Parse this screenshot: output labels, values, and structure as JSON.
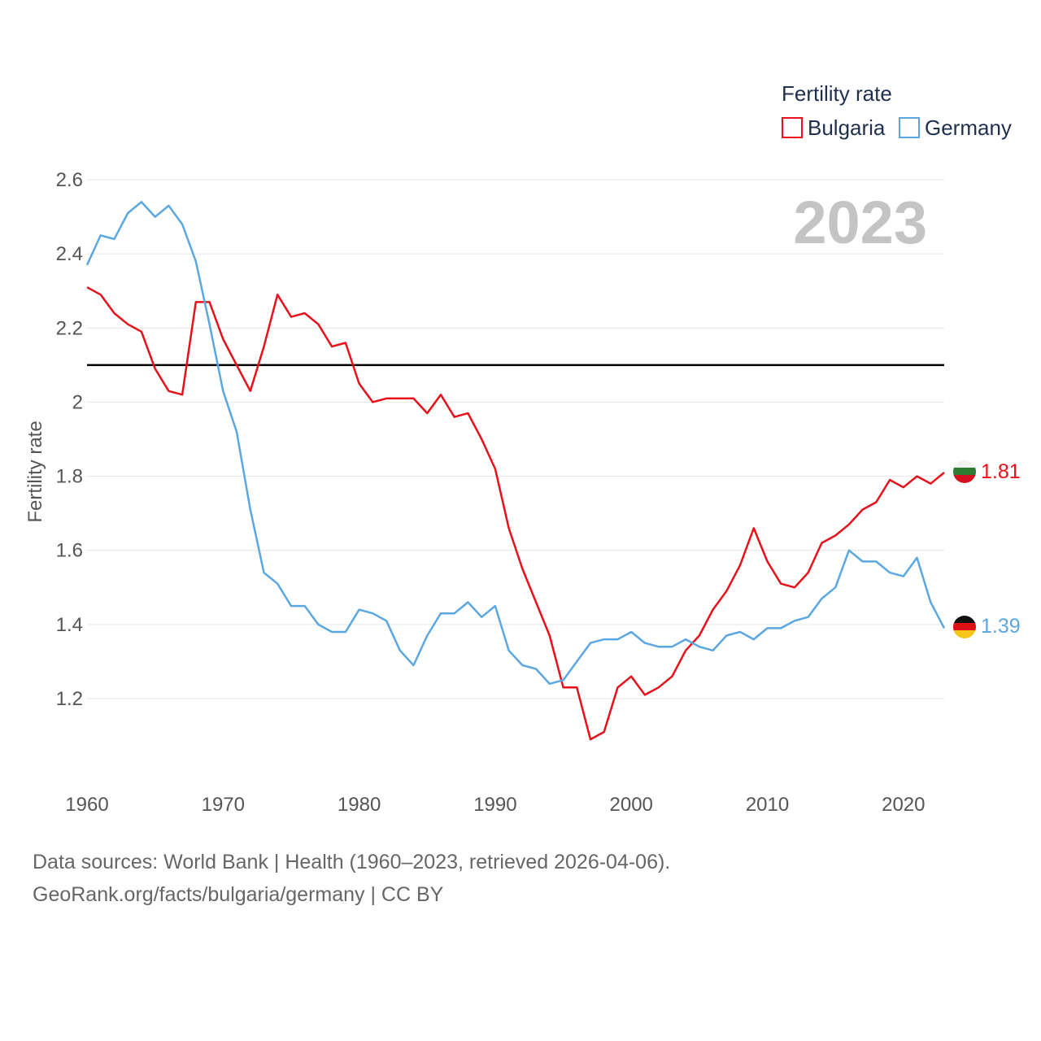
{
  "chart_data": {
    "type": "line",
    "title": "",
    "year_stamp": "2023",
    "xlabel": "",
    "ylabel": "Fertility rate",
    "xlim": [
      1960,
      2023
    ],
    "ylim": [
      1.02,
      2.62
    ],
    "x_ticks": [
      1960,
      1970,
      1980,
      1990,
      2000,
      2010,
      2020
    ],
    "y_ticks": [
      1.2,
      1.4,
      1.6,
      1.8,
      2.0,
      2.2,
      2.4,
      2.6
    ],
    "y_tick_labels": [
      "1.2",
      "1.4",
      "1.6",
      "1.8",
      "2",
      "2.2",
      "2.4",
      "2.6"
    ],
    "grid": true,
    "reference_line": {
      "value": 2.1,
      "color": "#000000"
    },
    "legend": {
      "title": "Fertility rate",
      "position": "top-right"
    },
    "x": [
      1960,
      1961,
      1962,
      1963,
      1964,
      1965,
      1966,
      1967,
      1968,
      1969,
      1970,
      1971,
      1972,
      1973,
      1974,
      1975,
      1976,
      1977,
      1978,
      1979,
      1980,
      1981,
      1982,
      1983,
      1984,
      1985,
      1986,
      1987,
      1988,
      1989,
      1990,
      1991,
      1992,
      1993,
      1994,
      1995,
      1996,
      1997,
      1998,
      1999,
      2000,
      2001,
      2002,
      2003,
      2004,
      2005,
      2006,
      2007,
      2008,
      2009,
      2010,
      2011,
      2012,
      2013,
      2014,
      2015,
      2016,
      2017,
      2018,
      2019,
      2020,
      2021,
      2022,
      2023
    ],
    "series": [
      {
        "name": "Bulgaria",
        "color": "#e8101a",
        "end_label": "1.81",
        "flag": "bulgaria-flag-icon",
        "values": [
          2.31,
          2.29,
          2.24,
          2.21,
          2.19,
          2.09,
          2.03,
          2.02,
          2.27,
          2.27,
          2.17,
          2.1,
          2.03,
          2.15,
          2.29,
          2.23,
          2.24,
          2.21,
          2.15,
          2.16,
          2.05,
          2.0,
          2.01,
          2.01,
          2.01,
          1.97,
          2.02,
          1.96,
          1.97,
          1.9,
          1.82,
          1.66,
          1.55,
          1.46,
          1.37,
          1.23,
          1.23,
          1.09,
          1.11,
          1.23,
          1.26,
          1.21,
          1.23,
          1.26,
          1.33,
          1.37,
          1.44,
          1.49,
          1.56,
          1.66,
          1.57,
          1.51,
          1.5,
          1.54,
          1.62,
          1.64,
          1.67,
          1.71,
          1.73,
          1.79,
          1.77,
          1.8,
          1.78,
          1.81
        ]
      },
      {
        "name": "Germany",
        "color": "#5ba7e1",
        "end_label": "1.39",
        "flag": "germany-flag-icon",
        "values": [
          2.37,
          2.45,
          2.44,
          2.51,
          2.54,
          2.5,
          2.53,
          2.48,
          2.38,
          2.21,
          2.03,
          1.92,
          1.71,
          1.54,
          1.51,
          1.45,
          1.45,
          1.4,
          1.38,
          1.38,
          1.44,
          1.43,
          1.41,
          1.33,
          1.29,
          1.37,
          1.43,
          1.43,
          1.46,
          1.42,
          1.45,
          1.33,
          1.29,
          1.28,
          1.24,
          1.25,
          1.3,
          1.35,
          1.36,
          1.36,
          1.38,
          1.35,
          1.34,
          1.34,
          1.36,
          1.34,
          1.33,
          1.37,
          1.38,
          1.36,
          1.39,
          1.39,
          1.41,
          1.42,
          1.47,
          1.5,
          1.6,
          1.57,
          1.57,
          1.54,
          1.53,
          1.58,
          1.46,
          1.39
        ]
      }
    ]
  },
  "footer": {
    "sources": "Data sources: World Bank | Health (1960–2023, retrieved 2026-04-06).",
    "credit": "GeoRank.org/facts/bulgaria/germany | CC BY"
  }
}
